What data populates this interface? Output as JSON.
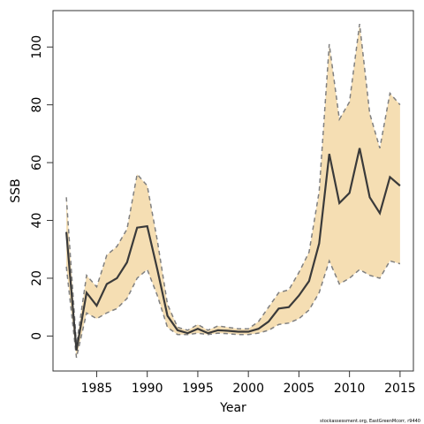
{
  "chart_data": {
    "type": "line",
    "x_label": "Year",
    "y_label": "SSB",
    "footer": "stockassessment.org, EastGreenMcorr, r9440",
    "x": [
      1982,
      1983,
      1984,
      1985,
      1986,
      1987,
      1988,
      1989,
      1990,
      1991,
      1992,
      1993,
      1994,
      1995,
      1996,
      1997,
      1998,
      1999,
      2000,
      2001,
      2002,
      2003,
      2004,
      2005,
      2006,
      2007,
      2008,
      2009,
      2010,
      2011,
      2012,
      2013,
      2014,
      2015
    ],
    "values": [
      36,
      -5,
      15,
      10.5,
      18,
      20,
      25.5,
      37.5,
      38,
      23,
      7,
      2,
      1,
      2.5,
      1,
      2,
      1.8,
      1.5,
      1.5,
      2.5,
      5,
      9.5,
      10,
      14,
      19,
      32,
      63,
      46,
      49.5,
      65,
      48,
      42.5,
      55,
      52
    ],
    "lower": [
      24,
      -7.5,
      8,
      6,
      8,
      9.5,
      13,
      20,
      23,
      14,
      3,
      0.5,
      0.5,
      1,
      0.5,
      1,
      0.8,
      0.5,
      0.5,
      1,
      2,
      4,
      4.5,
      6,
      9,
      15,
      26,
      18,
      20,
      23,
      21,
      20,
      26,
      25
    ],
    "upper": [
      48,
      -3,
      21,
      17,
      28,
      31,
      37,
      56,
      52,
      33,
      11,
      3,
      2,
      4,
      2,
      3.5,
      3,
      2.5,
      2.5,
      5,
      10,
      15,
      16,
      22,
      29,
      50,
      101,
      75,
      81,
      108,
      77,
      65,
      84,
      80
    ],
    "line_color": "#3a3a3a",
    "bound_color": "#808080",
    "band_color": "#f5deb3",
    "xlim": [
      1980.68,
      2016.32
    ],
    "ylim": [
      -12.1,
      112.6
    ],
    "xticks": [
      1985,
      1990,
      1995,
      2000,
      2005,
      2010,
      2015
    ],
    "yticks": [
      0,
      20,
      40,
      60,
      80,
      100
    ]
  }
}
